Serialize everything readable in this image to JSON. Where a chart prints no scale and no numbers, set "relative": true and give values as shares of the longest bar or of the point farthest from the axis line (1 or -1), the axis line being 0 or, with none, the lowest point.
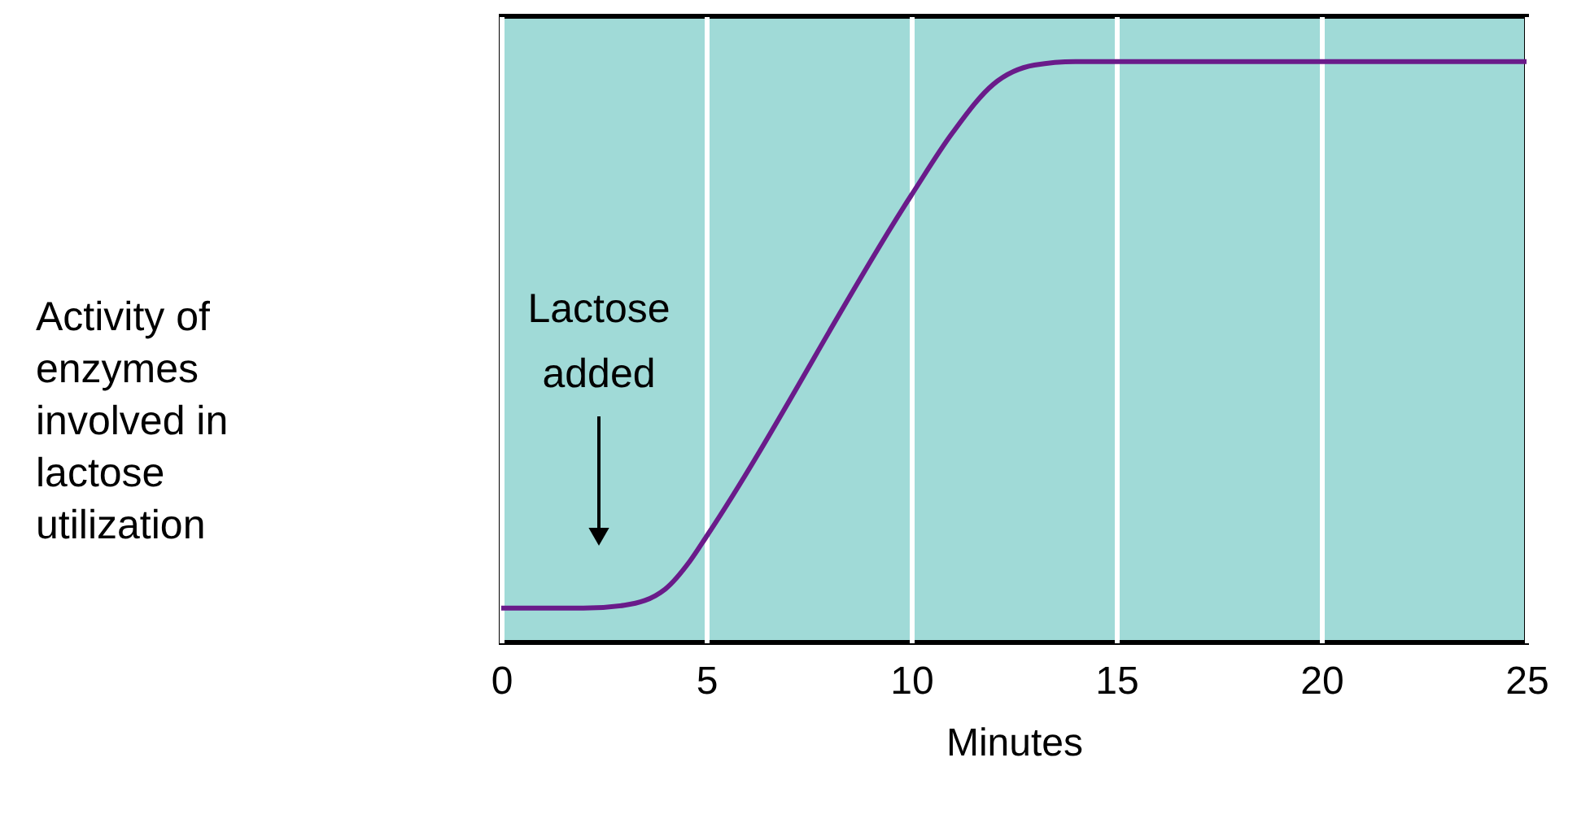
{
  "chart_data": {
    "type": "line",
    "relative": true,
    "xlabel": "Minutes",
    "xlim": [
      0,
      25
    ],
    "xticks": [
      0,
      5,
      10,
      15,
      20,
      25
    ],
    "grid": "x",
    "annotations": [
      "Lactose added",
      "Activity of enzymes involved in lactose utilization"
    ],
    "series": [
      {
        "color": "#6a1b8a",
        "x": [
          0,
          2,
          3,
          4,
          4.6,
          5,
          10,
          11,
          12,
          13,
          14,
          25
        ],
        "values": [
          0.059,
          0.059,
          0.064,
          0.092,
          0.14,
          0.182,
          0.77,
          0.877,
          0.961,
          0.994,
          1,
          1
        ]
      }
    ]
  }
}
